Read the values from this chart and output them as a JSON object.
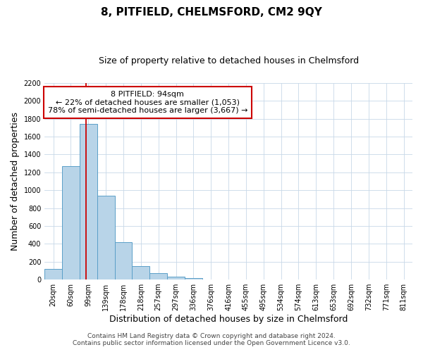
{
  "title": "8, PITFIELD, CHELMSFORD, CM2 9QY",
  "subtitle": "Size of property relative to detached houses in Chelmsford",
  "xlabel": "Distribution of detached houses by size in Chelmsford",
  "ylabel": "Number of detached properties",
  "bar_labels": [
    "20sqm",
    "60sqm",
    "99sqm",
    "139sqm",
    "178sqm",
    "218sqm",
    "257sqm",
    "297sqm",
    "336sqm",
    "376sqm",
    "416sqm",
    "455sqm",
    "495sqm",
    "534sqm",
    "574sqm",
    "613sqm",
    "653sqm",
    "692sqm",
    "732sqm",
    "771sqm",
    "811sqm"
  ],
  "bar_values": [
    115,
    1270,
    1740,
    940,
    415,
    150,
    75,
    35,
    20,
    0,
    0,
    0,
    0,
    0,
    0,
    0,
    0,
    0,
    0,
    0,
    0
  ],
  "bar_color": "#b8d4e8",
  "bar_edge_color": "#5a9fc8",
  "redline_bin_index": 1.88,
  "ylim": [
    0,
    2200
  ],
  "yticks": [
    0,
    200,
    400,
    600,
    800,
    1000,
    1200,
    1400,
    1600,
    1800,
    2000,
    2200
  ],
  "annotation_title": "8 PITFIELD: 94sqm",
  "annotation_line1": "← 22% of detached houses are smaller (1,053)",
  "annotation_line2": "78% of semi-detached houses are larger (3,667) →",
  "annotation_box_color": "#ffffff",
  "annotation_box_edge": "#cc0000",
  "footer1": "Contains HM Land Registry data © Crown copyright and database right 2024.",
  "footer2": "Contains public sector information licensed under the Open Government Licence v3.0.",
  "background_color": "#ffffff",
  "grid_color": "#c8d8e8",
  "title_fontsize": 11,
  "subtitle_fontsize": 9,
  "axis_label_fontsize": 9,
  "tick_fontsize": 7,
  "annotation_fontsize": 8,
  "footer_fontsize": 6.5
}
